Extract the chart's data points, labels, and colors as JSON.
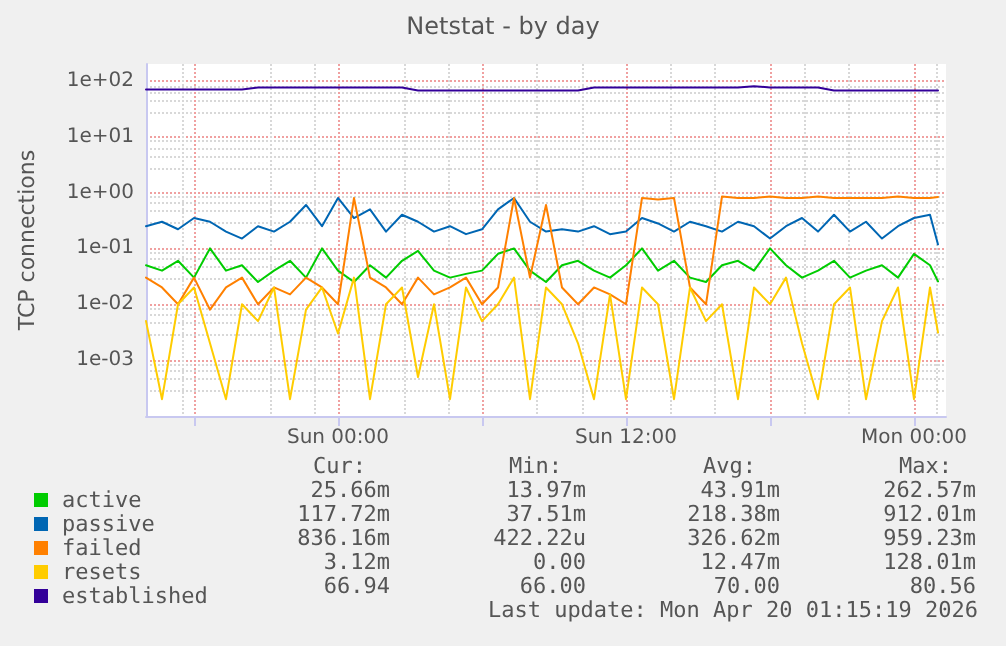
{
  "chart_data": {
    "type": "line",
    "title": "Netstat - by day",
    "ylabel": "TCP connections",
    "log": "y",
    "grid": true,
    "legend": "bottom left",
    "marker": "none",
    "xlim": [
      "2026-04-18T16:00",
      "2026-04-20T01:20"
    ],
    "xticks": [
      {
        "value": "2026-04-18T18:00",
        "label": null
      },
      {
        "value": "2026-04-19T00:00",
        "label": "Sun 00:00"
      },
      {
        "value": "2026-04-19T06:00",
        "label": null
      },
      {
        "value": "2026-04-19T12:00",
        "label": "Sun 12:00"
      },
      {
        "value": "2026-04-19T18:00",
        "label": null
      },
      {
        "value": "2026-04-20T00:00",
        "label": "Mon 00:00"
      }
    ],
    "ylim": [
      0.0001,
      200
    ],
    "yticks": [
      {
        "value": 0.001,
        "label": "1e-03"
      },
      {
        "value": 0.01,
        "label": "1e-02"
      },
      {
        "value": 0.1,
        "label": "1e-01"
      },
      {
        "value": 1,
        "label": "1e+00"
      },
      {
        "value": 10,
        "label": "1e+01"
      },
      {
        "value": 100,
        "label": "1e+02"
      }
    ],
    "x": [
      "2026-04-18T16:00",
      "2026-04-18T16:40",
      "2026-04-18T17:20",
      "2026-04-18T18:00",
      "2026-04-18T18:40",
      "2026-04-18T19:20",
      "2026-04-18T20:00",
      "2026-04-18T20:40",
      "2026-04-18T21:20",
      "2026-04-18T22:00",
      "2026-04-18T22:40",
      "2026-04-18T23:20",
      "2026-04-19T00:00",
      "2026-04-19T00:40",
      "2026-04-19T01:20",
      "2026-04-19T02:00",
      "2026-04-19T02:40",
      "2026-04-19T03:20",
      "2026-04-19T04:00",
      "2026-04-19T04:40",
      "2026-04-19T05:20",
      "2026-04-19T06:00",
      "2026-04-19T06:40",
      "2026-04-19T07:20",
      "2026-04-19T08:00",
      "2026-04-19T08:40",
      "2026-04-19T09:20",
      "2026-04-19T10:00",
      "2026-04-19T10:40",
      "2026-04-19T11:20",
      "2026-04-19T12:00",
      "2026-04-19T12:40",
      "2026-04-19T13:20",
      "2026-04-19T14:00",
      "2026-04-19T14:40",
      "2026-04-19T15:20",
      "2026-04-19T16:00",
      "2026-04-19T16:40",
      "2026-04-19T17:20",
      "2026-04-19T18:00",
      "2026-04-19T18:40",
      "2026-04-19T19:20",
      "2026-04-19T20:00",
      "2026-04-19T20:40",
      "2026-04-19T21:20",
      "2026-04-19T22:00",
      "2026-04-19T22:40",
      "2026-04-19T23:20",
      "2026-04-20T00:00",
      "2026-04-20T00:40",
      "2026-04-20T01:00"
    ],
    "series": [
      {
        "name": "active",
        "color": "#00cc00",
        "values": [
          0.05,
          0.04,
          0.06,
          0.03,
          0.1,
          0.04,
          0.05,
          0.025,
          0.04,
          0.06,
          0.03,
          0.1,
          0.04,
          0.025,
          0.05,
          0.03,
          0.06,
          0.09,
          0.04,
          0.03,
          0.035,
          0.04,
          0.08,
          0.1,
          0.04,
          0.025,
          0.05,
          0.06,
          0.04,
          0.03,
          0.05,
          0.1,
          0.04,
          0.06,
          0.03,
          0.025,
          0.05,
          0.06,
          0.04,
          0.1,
          0.05,
          0.03,
          0.04,
          0.06,
          0.03,
          0.04,
          0.05,
          0.03,
          0.08,
          0.05,
          0.0257
        ]
      },
      {
        "name": "passive",
        "color": "#0066b3",
        "values": [
          0.25,
          0.3,
          0.22,
          0.35,
          0.3,
          0.2,
          0.15,
          0.25,
          0.2,
          0.3,
          0.6,
          0.25,
          0.8,
          0.35,
          0.5,
          0.2,
          0.4,
          0.3,
          0.2,
          0.25,
          0.18,
          0.22,
          0.5,
          0.8,
          0.3,
          0.2,
          0.22,
          0.2,
          0.25,
          0.18,
          0.2,
          0.35,
          0.28,
          0.2,
          0.3,
          0.25,
          0.2,
          0.3,
          0.25,
          0.15,
          0.25,
          0.35,
          0.2,
          0.4,
          0.2,
          0.3,
          0.15,
          0.25,
          0.35,
          0.4,
          0.118
        ]
      },
      {
        "name": "failed",
        "color": "#ff8000",
        "values": [
          0.03,
          0.02,
          0.01,
          0.03,
          0.008,
          0.02,
          0.03,
          0.01,
          0.02,
          0.015,
          0.03,
          0.02,
          0.01,
          0.8,
          0.03,
          0.02,
          0.01,
          0.03,
          0.015,
          0.02,
          0.03,
          0.01,
          0.02,
          0.8,
          0.03,
          0.6,
          0.02,
          0.01,
          0.02,
          0.015,
          0.01,
          0.8,
          0.75,
          0.8,
          0.02,
          0.01,
          0.85,
          0.8,
          0.8,
          0.85,
          0.8,
          0.8,
          0.85,
          0.8,
          0.8,
          0.8,
          0.8,
          0.85,
          0.8,
          0.8,
          0.836
        ]
      },
      {
        "name": "resets",
        "color": "#ffcc00",
        "values": [
          0.005,
          0.0002,
          0.01,
          0.02,
          0.002,
          0.0002,
          0.01,
          0.005,
          0.02,
          0.0002,
          0.008,
          0.02,
          0.003,
          0.03,
          0.0002,
          0.01,
          0.02,
          0.0005,
          0.01,
          0.0002,
          0.02,
          0.005,
          0.01,
          0.03,
          0.0002,
          0.02,
          0.01,
          0.002,
          0.0002,
          0.015,
          0.0002,
          0.02,
          0.01,
          0.0002,
          0.02,
          0.005,
          0.01,
          0.0002,
          0.02,
          0.01,
          0.03,
          0.002,
          0.0002,
          0.01,
          0.02,
          0.0002,
          0.005,
          0.02,
          0.0002,
          0.02,
          0.00312
        ]
      },
      {
        "name": "established",
        "color": "#330099",
        "values": [
          70,
          70,
          70,
          70,
          70,
          70,
          70,
          76,
          76,
          76,
          76,
          76,
          76,
          76,
          76,
          76,
          76,
          67,
          67,
          67,
          67,
          67,
          67,
          67,
          67,
          67,
          67,
          67,
          76,
          76,
          76,
          76,
          76,
          76,
          76,
          76,
          76,
          76,
          80,
          76,
          76,
          76,
          76,
          67,
          67,
          67,
          67,
          67,
          67,
          67,
          66.94
        ]
      }
    ],
    "annotations": [
      "Cur:",
      "Min:",
      "Avg:",
      "Max:",
      "25.66m",
      "13.97m",
      "43.91m",
      "262.57m",
      "117.72m",
      "37.51m",
      "218.38m",
      "912.01m",
      "836.16m",
      "422.22u",
      "326.62m",
      "959.23m",
      "3.12m",
      "0.00",
      "12.47m",
      "128.01m",
      "66.94",
      "66.00",
      "70.00",
      "80.56",
      "Last update: Mon Apr 20 01:15:19 2026"
    ]
  }
}
